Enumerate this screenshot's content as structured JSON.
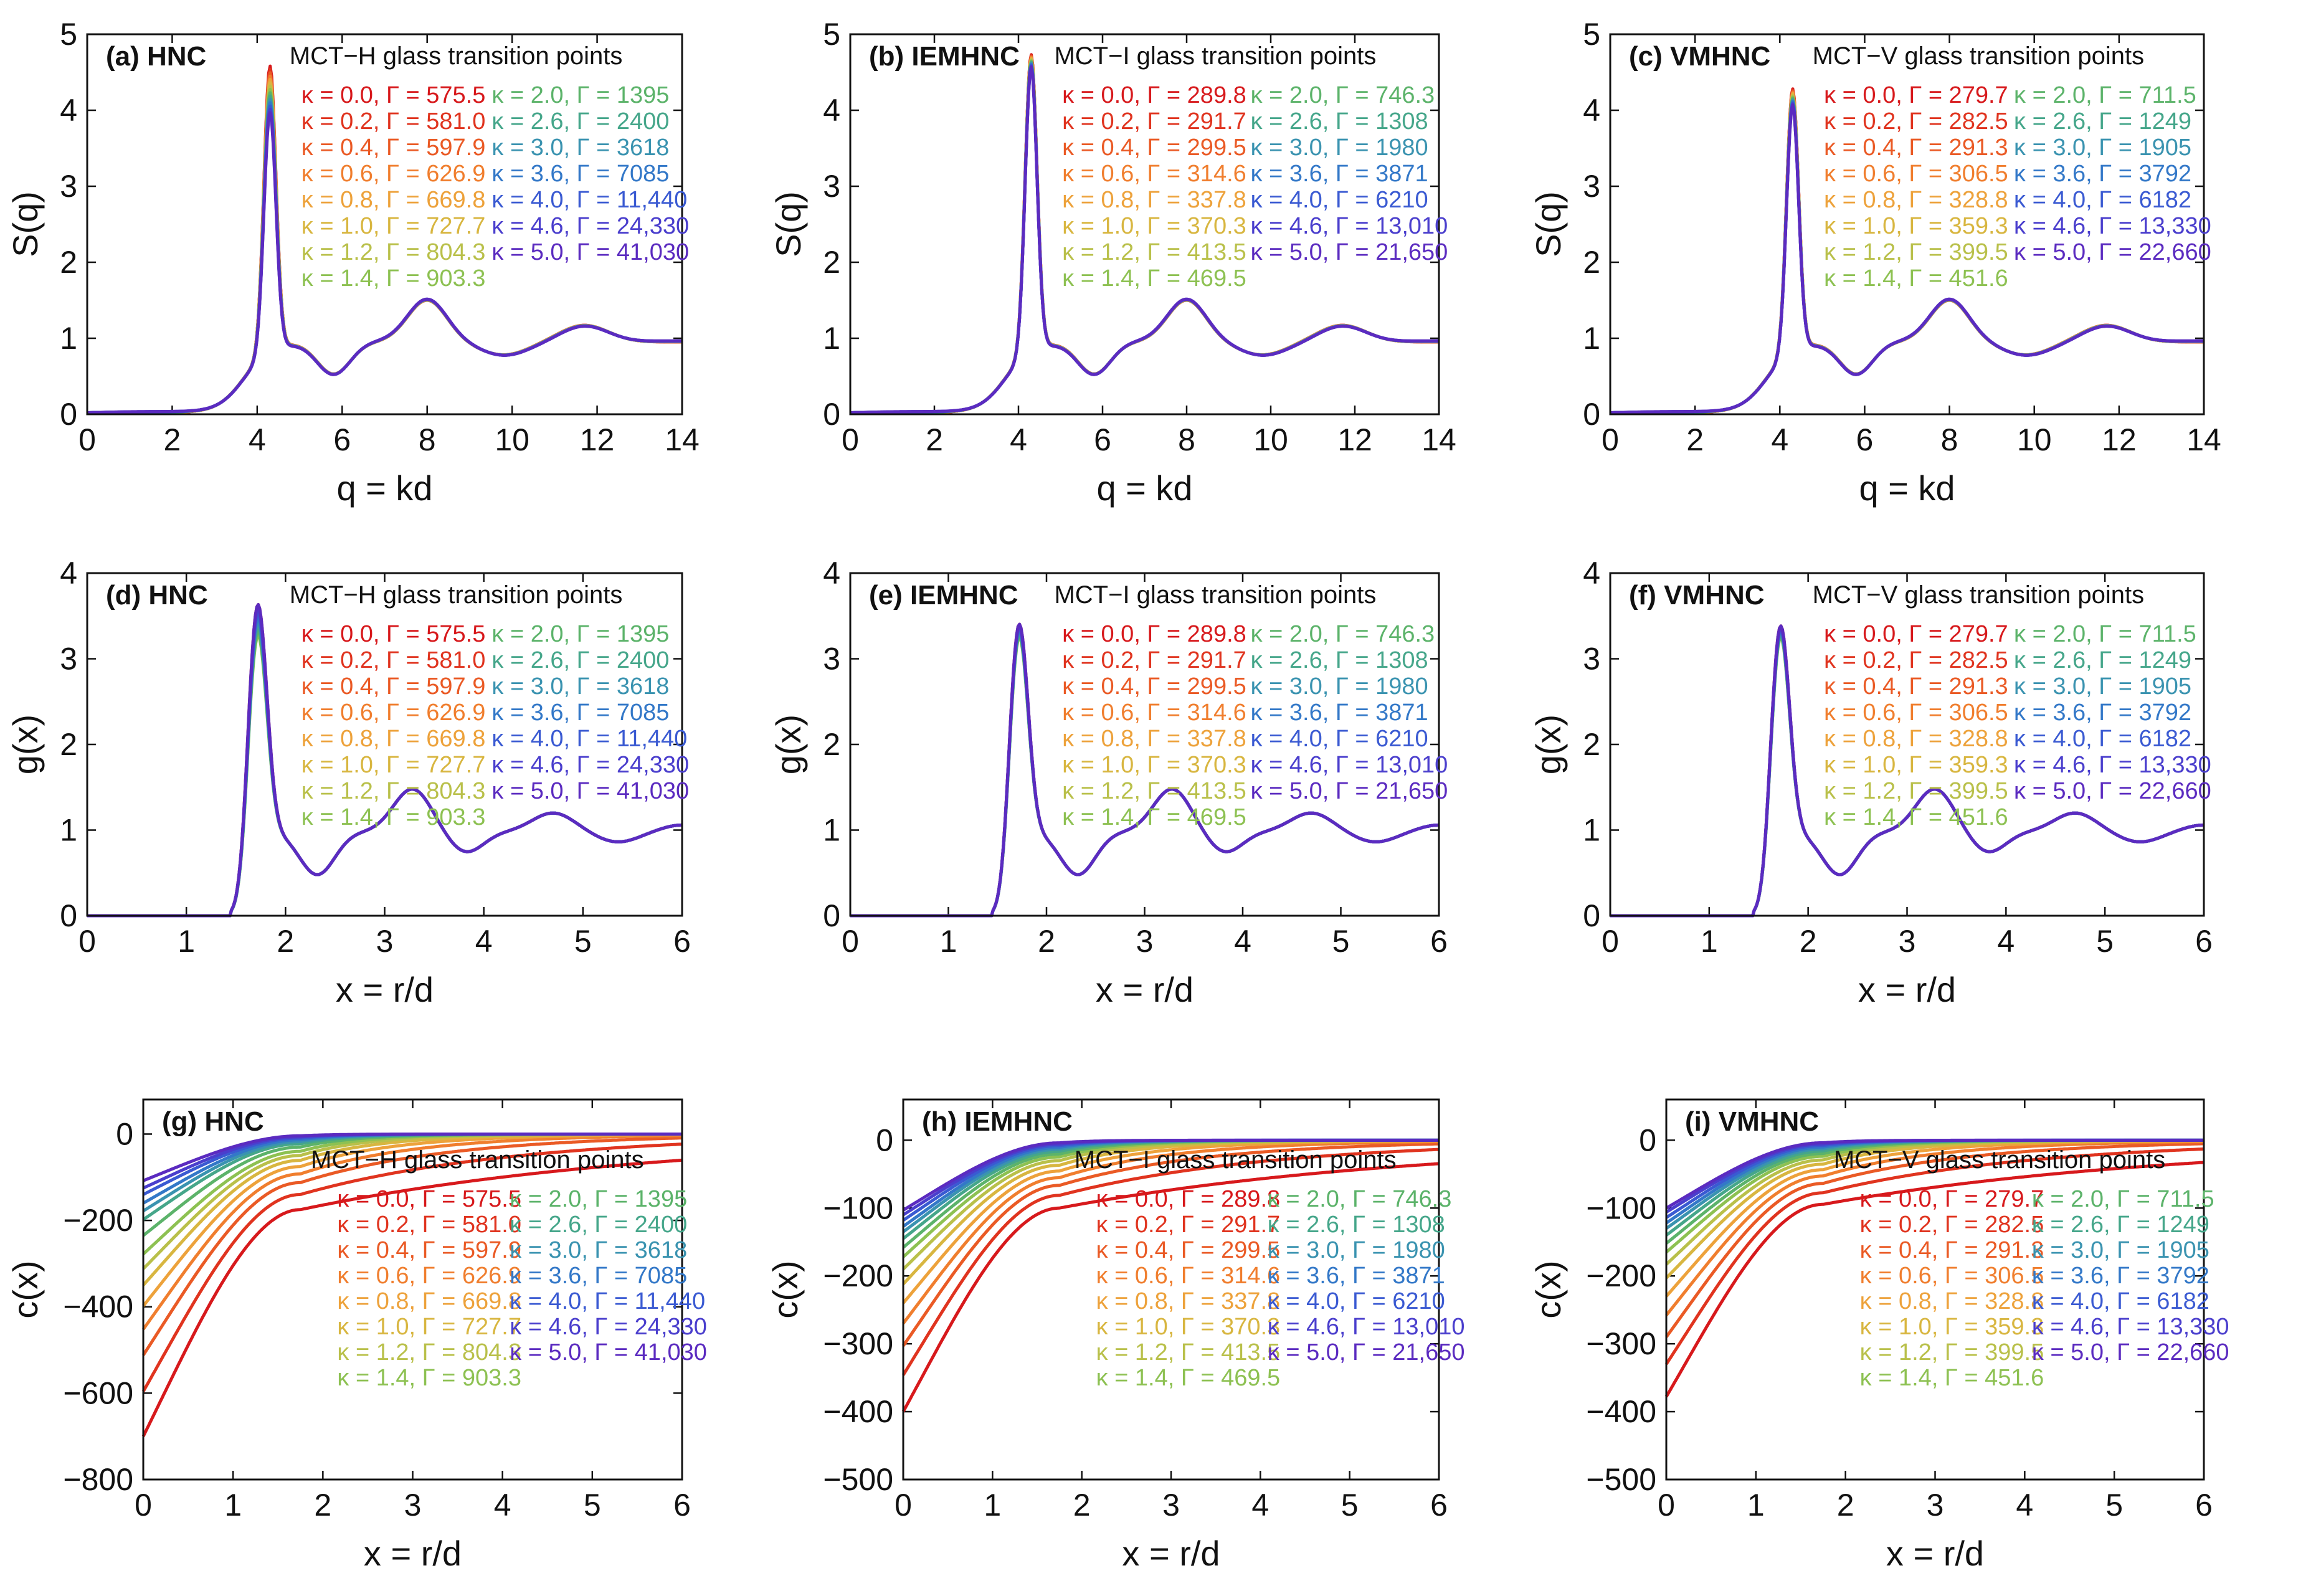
{
  "figure": {
    "legend_title_H": "MCT−H glass transition points",
    "legend_title_I": "MCT−I glass transition points",
    "legend_title_V": "MCT−V glass transition points",
    "kappa_values": [
      0.0,
      0.2,
      0.4,
      0.6,
      0.8,
      1.0,
      1.2,
      1.4,
      2.0,
      2.6,
      3.0,
      3.6,
      4.0,
      4.6,
      5.0
    ],
    "series_colors": [
      "#d7191c",
      "#e0341f",
      "#ea5a25",
      "#f07e2e",
      "#eda23b",
      "#d8b640",
      "#b9c04a",
      "#8dc152",
      "#5cb36a",
      "#45a68a",
      "#3a93b0",
      "#3378c8",
      "#3a5ad2",
      "#4a3ecd",
      "#5b2bc0"
    ],
    "legend_H": [
      "κ = 0.0, Γ = 575.5",
      "κ = 0.2, Γ = 581.0",
      "κ = 0.4, Γ = 597.9",
      "κ = 0.6, Γ = 626.9",
      "κ = 0.8, Γ = 669.8",
      "κ = 1.0, Γ = 727.7",
      "κ = 1.2, Γ = 804.3",
      "κ = 1.4, Γ = 903.3",
      "κ = 2.0, Γ = 1395",
      "κ = 2.6, Γ = 2400",
      "κ = 3.0, Γ = 3618",
      "κ = 3.6, Γ = 7085",
      "κ = 4.0, Γ = 11,440",
      "κ = 4.6, Γ = 24,330",
      "κ = 5.0, Γ = 41,030"
    ],
    "legend_I": [
      "κ = 0.0, Γ = 289.8",
      "κ = 0.2, Γ = 291.7",
      "κ = 0.4, Γ = 299.5",
      "κ = 0.6, Γ = 314.6",
      "κ = 0.8, Γ = 337.8",
      "κ = 1.0, Γ = 370.3",
      "κ = 1.2, Γ = 413.5",
      "κ = 1.4, Γ = 469.5",
      "κ = 2.0, Γ = 746.3",
      "κ = 2.6, Γ = 1308",
      "κ = 3.0, Γ = 1980",
      "κ = 3.6, Γ = 3871",
      "κ = 4.0, Γ = 6210",
      "κ = 4.6, Γ = 13,010",
      "κ = 5.0, Γ = 21,650"
    ],
    "legend_V_top": [
      "κ = 0.0, Γ = 279.7",
      "κ = 0.2, Γ = 282.5",
      "κ = 0.4, Γ = 291.3",
      "κ = 0.6, Γ = 306.5",
      "κ = 0.8, Γ = 328.8",
      "κ = 1.0, Γ = 359.3",
      "κ = 1.2, Γ = 399.5",
      "κ = 1.4, Γ = 451.6",
      "κ = 2.0, Γ = 711.5",
      "κ = 2.6, Γ = 1249",
      "κ = 3.0, Γ = 1905",
      "κ = 3.6, Γ = 3792",
      "κ = 4.0, Γ = 6182",
      "κ = 4.6, Γ = 13,330",
      "κ = 5.0, Γ = 22,660"
    ]
  },
  "chart_data": [
    {
      "id": "a",
      "type": "line",
      "tag": "(a) HNC",
      "closure": "HNC",
      "quantity": "S",
      "legendKey": "legend_H",
      "titleKey": "legend_title_H",
      "xlabel": "q = kd",
      "ylabel": "S(q)",
      "xlim": [
        0,
        14
      ],
      "ylim": [
        0,
        5
      ],
      "xticks": [
        0,
        2,
        4,
        6,
        8,
        10,
        12,
        14
      ],
      "yticks": [
        0,
        1,
        2,
        3,
        4,
        5
      ],
      "peak_range": [
        3.85,
        4.45
      ]
    },
    {
      "id": "b",
      "type": "line",
      "tag": "(b) IEMHNC",
      "closure": "IEMHNC",
      "quantity": "S",
      "legendKey": "legend_I",
      "titleKey": "legend_title_I",
      "xlabel": "q = kd",
      "ylabel": "S(q)",
      "xlim": [
        0,
        14
      ],
      "ylim": [
        0,
        5
      ],
      "xticks": [
        0,
        2,
        4,
        6,
        8,
        10,
        12,
        14
      ],
      "yticks": [
        0,
        1,
        2,
        3,
        4,
        5
      ],
      "peak_range": [
        4.45,
        4.6
      ]
    },
    {
      "id": "c",
      "type": "line",
      "tag": "(c) VMHNC",
      "closure": "VMHNC",
      "quantity": "S",
      "legendKey": "legend_V_top",
      "titleKey": "legend_title_V",
      "xlabel": "q = kd",
      "ylabel": "S(q)",
      "xlim": [
        0,
        14
      ],
      "ylim": [
        0,
        5
      ],
      "xticks": [
        0,
        2,
        4,
        6,
        8,
        10,
        12,
        14
      ],
      "yticks": [
        0,
        1,
        2,
        3,
        4,
        5
      ],
      "peak_range": [
        3.95,
        4.15
      ]
    },
    {
      "id": "d",
      "type": "line",
      "tag": "(d) HNC",
      "closure": "HNC",
      "quantity": "g",
      "legendKey": "legend_H",
      "titleKey": "legend_title_H",
      "xlabel": "x = r/d",
      "ylabel": "g(x)",
      "xlim": [
        0,
        6
      ],
      "ylim": [
        0,
        4
      ],
      "xticks": [
        0,
        1,
        2,
        3,
        4,
        5,
        6
      ],
      "yticks": [
        0,
        1,
        2,
        3,
        4
      ],
      "peak_range": [
        3.2,
        3.6
      ]
    },
    {
      "id": "e",
      "type": "line",
      "tag": "(e) IEMHNC",
      "closure": "IEMHNC",
      "quantity": "g",
      "legendKey": "legend_I",
      "titleKey": "legend_title_I",
      "xlabel": "x = r/d",
      "ylabel": "g(x)",
      "xlim": [
        0,
        6
      ],
      "ylim": [
        0,
        4
      ],
      "xticks": [
        0,
        1,
        2,
        3,
        4,
        5,
        6
      ],
      "yticks": [
        0,
        1,
        2,
        3,
        4
      ],
      "peak_range": [
        3.2,
        3.37
      ]
    },
    {
      "id": "f",
      "type": "line",
      "tag": "(f) VMHNC",
      "closure": "VMHNC",
      "quantity": "g",
      "legendKey": "legend_V_top",
      "titleKey": "legend_title_V",
      "xlabel": "x = r/d",
      "ylabel": "g(x)",
      "xlim": [
        0,
        6
      ],
      "ylim": [
        0,
        4
      ],
      "xticks": [
        0,
        1,
        2,
        3,
        4,
        5,
        6
      ],
      "yticks": [
        0,
        1,
        2,
        3,
        4
      ],
      "peak_range": [
        3.2,
        3.35
      ]
    },
    {
      "id": "g",
      "type": "line",
      "tag": "(g) HNC",
      "closure": "HNC",
      "quantity": "c",
      "legendKey": "legend_H",
      "titleKey": "legend_title_H",
      "xlabel": "x = r/d",
      "ylabel": "c(x)",
      "xlim": [
        0,
        6
      ],
      "ylim": [
        -800,
        80
      ],
      "xticks": [
        0,
        1,
        2,
        3,
        4,
        5,
        6
      ],
      "yticks": [
        -800,
        -600,
        -400,
        -200,
        0
      ],
      "c0": [
        -700,
        -596,
        -512,
        -452,
        -398,
        -350,
        -312,
        -278,
        -235,
        -198,
        -178,
        -160,
        -140,
        -125,
        -108
      ]
    },
    {
      "id": "h",
      "type": "line",
      "tag": "(h) IEMHNC",
      "closure": "IEMHNC",
      "quantity": "c",
      "legendKey": "legend_I",
      "titleKey": "legend_title_I",
      "xlabel": "x = r/d",
      "ylabel": "c(x)",
      "xlim": [
        0,
        6
      ],
      "ylim": [
        -500,
        60
      ],
      "xticks": [
        0,
        1,
        2,
        3,
        4,
        5,
        6
      ],
      "yticks": [
        -500,
        -400,
        -300,
        -200,
        -100,
        0
      ],
      "c0": [
        -400,
        -346,
        -303,
        -270,
        -240,
        -212,
        -190,
        -172,
        -158,
        -145,
        -135,
        -127,
        -118,
        -110,
        -103
      ]
    },
    {
      "id": "i",
      "type": "line",
      "tag": "(i) VMHNC",
      "closure": "VMHNC",
      "quantity": "c",
      "legendKey": "legend_V_top",
      "titleKey": "legend_title_V",
      "xlabel": "x = r/d",
      "ylabel": "c(x)",
      "xlim": [
        0,
        6
      ],
      "ylim": [
        -500,
        60
      ],
      "xticks": [
        0,
        1,
        2,
        3,
        4,
        5,
        6
      ],
      "yticks": [
        -500,
        -400,
        -300,
        -200,
        -100,
        0
      ],
      "c0": [
        -378,
        -330,
        -290,
        -258,
        -230,
        -203,
        -183,
        -165,
        -152,
        -140,
        -130,
        -122,
        -114,
        -106,
        -100
      ]
    }
  ]
}
